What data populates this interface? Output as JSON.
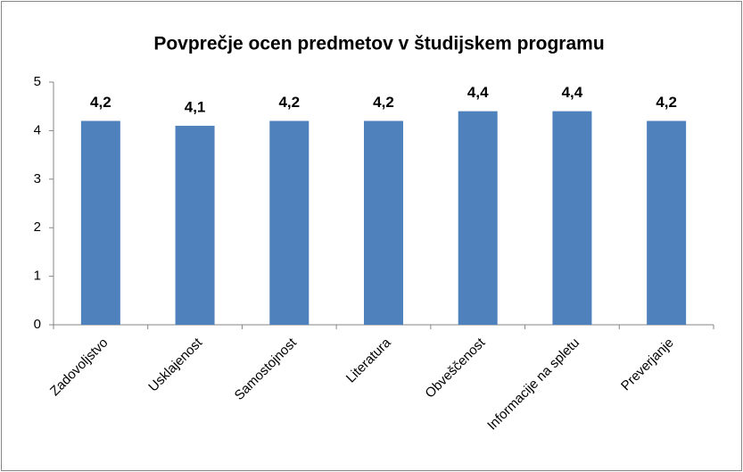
{
  "chart_data": {
    "type": "bar",
    "title": "Povprečje ocen predmetov v študijskem programu",
    "categories": [
      "Zadovoljstvo",
      "Usklajenost",
      "Samostojnost",
      "Literatura",
      "Obveščenost",
      "Informacije na spletu",
      "Preverjanje"
    ],
    "values": [
      4.2,
      4.1,
      4.2,
      4.2,
      4.4,
      4.4,
      4.2
    ],
    "value_labels": [
      "4,2",
      "4,1",
      "4,2",
      "4,2",
      "4,4",
      "4,4",
      "4,2"
    ],
    "color": "#4f81bd",
    "ylim": [
      0,
      5
    ],
    "yticks": [
      0,
      1,
      2,
      3,
      4,
      5
    ],
    "grid": false
  }
}
